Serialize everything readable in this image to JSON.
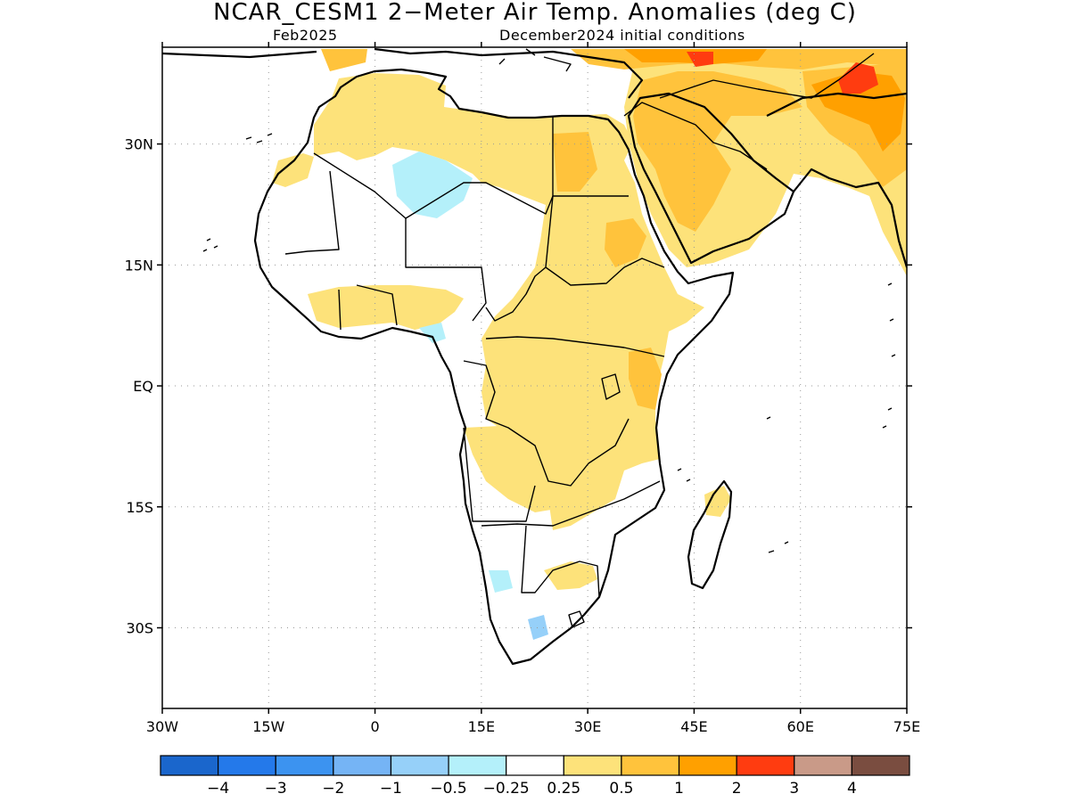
{
  "title": "NCAR_CESM1 2−Meter Air Temp. Anomalies (deg C)",
  "subtitle_left": "Feb2025",
  "subtitle_right": "December2024 initial conditions",
  "map": {
    "lon_range": [
      -30,
      75
    ],
    "lat_range": [
      -40,
      42
    ],
    "x_ticks": [
      {
        "value": -30,
        "label": "30W"
      },
      {
        "value": -15,
        "label": "15W"
      },
      {
        "value": 0,
        "label": "0"
      },
      {
        "value": 15,
        "label": "15E"
      },
      {
        "value": 30,
        "label": "30E"
      },
      {
        "value": 45,
        "label": "45E"
      },
      {
        "value": 60,
        "label": "60E"
      },
      {
        "value": 75,
        "label": "75E"
      }
    ],
    "y_ticks": [
      {
        "value": 30,
        "label": "30N"
      },
      {
        "value": 15,
        "label": "15N"
      },
      {
        "value": 0,
        "label": "EQ"
      },
      {
        "value": -15,
        "label": "15S"
      },
      {
        "value": -30,
        "label": "30S"
      }
    ],
    "grid": true
  },
  "colorbar": {
    "colors": [
      "#1a66cc",
      "#2479ea",
      "#3c93f0",
      "#75b4f5",
      "#96d0f9",
      "#b4f0fa",
      "#ffffff",
      "#fde27a",
      "#ffc33c",
      "#ffa000",
      "#ff3c10",
      "#c99a88",
      "#7a4d40"
    ],
    "labels": [
      "−4",
      "−3",
      "−2",
      "−1",
      "−0.5",
      "−0.25",
      "0.25",
      "0.5",
      "1",
      "2",
      "3",
      "4"
    ]
  },
  "anomaly_colors": {
    "light_cool": "#b4f0fa",
    "cool": "#96d0f9",
    "light_warm": "#fde27a",
    "warm": "#ffc33c",
    "hot": "#ffa000",
    "very_hot": "#ff3c10"
  }
}
